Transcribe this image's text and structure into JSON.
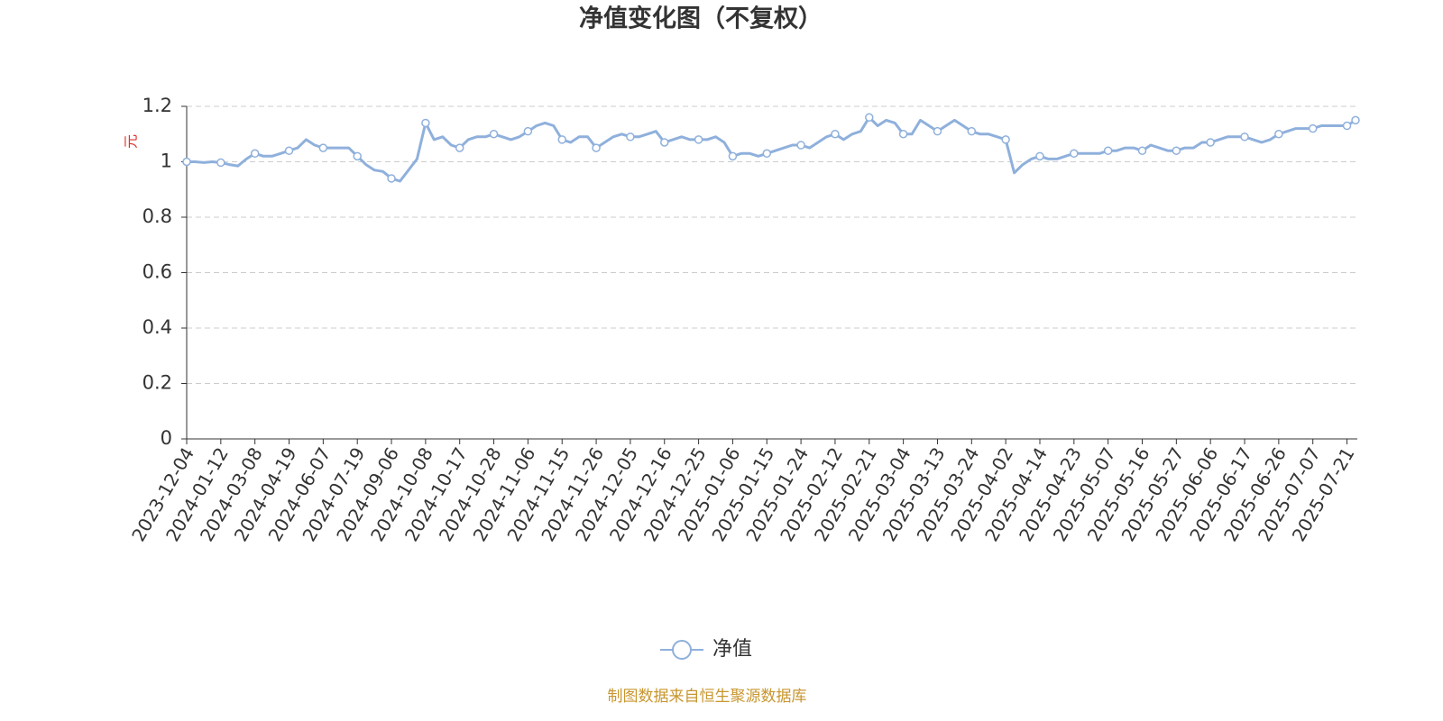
{
  "chart_data": {
    "type": "line",
    "title": "净值变化图（不复权）",
    "y_axis_label": "元",
    "source": "制图数据来自恒生聚源数据库",
    "legend": "bottom",
    "grid": true,
    "ylim": [
      0,
      1.2
    ],
    "yticks": [
      0,
      0.2,
      0.4,
      0.6,
      0.8,
      1,
      1.2
    ],
    "categories": [
      "2023-12-04",
      null,
      null,
      null,
      "2024-01-12",
      null,
      null,
      null,
      "2024-03-08",
      null,
      null,
      null,
      "2024-04-19",
      null,
      null,
      null,
      "2024-06-07",
      null,
      null,
      null,
      "2024-07-19",
      null,
      null,
      null,
      "2024-09-06",
      null,
      null,
      null,
      "2024-10-08",
      null,
      null,
      null,
      "2024-10-17",
      null,
      null,
      null,
      "2024-10-28",
      null,
      null,
      null,
      "2024-11-06",
      null,
      null,
      null,
      "2024-11-15",
      null,
      null,
      null,
      "2024-11-26",
      null,
      null,
      null,
      "2024-12-05",
      null,
      null,
      null,
      "2024-12-16",
      null,
      null,
      null,
      "2024-12-25",
      null,
      null,
      null,
      "2025-01-06",
      null,
      null,
      null,
      "2025-01-15",
      null,
      null,
      null,
      "2025-01-24",
      null,
      null,
      null,
      "2025-02-12",
      null,
      null,
      null,
      "2025-02-21",
      null,
      null,
      null,
      "2025-03-04",
      null,
      null,
      null,
      "2025-03-13",
      null,
      null,
      null,
      "2025-03-24",
      null,
      null,
      null,
      "2025-04-02",
      null,
      null,
      null,
      "2025-04-14",
      null,
      null,
      null,
      "2025-04-23",
      null,
      null,
      null,
      "2025-05-07",
      null,
      null,
      null,
      "2025-05-16",
      null,
      null,
      null,
      "2025-05-27",
      null,
      null,
      null,
      "2025-06-06",
      null,
      null,
      null,
      "2025-06-17",
      null,
      null,
      null,
      "2025-06-26",
      null,
      null,
      null,
      "2025-07-07",
      null,
      null,
      null,
      "2025-07-21",
      null
    ],
    "series": [
      {
        "name": "净值",
        "color": "#8fb0dc",
        "values": [
          1.0,
          1.0,
          0.997,
          1.0,
          0.997,
          0.99,
          0.985,
          1.01,
          1.03,
          1.02,
          1.02,
          1.03,
          1.04,
          1.05,
          1.08,
          1.06,
          1.05,
          1.05,
          1.05,
          1.05,
          1.02,
          0.99,
          0.97,
          0.965,
          0.94,
          0.93,
          0.97,
          1.01,
          1.14,
          1.08,
          1.09,
          1.06,
          1.05,
          1.08,
          1.09,
          1.09,
          1.1,
          1.09,
          1.08,
          1.09,
          1.11,
          1.13,
          1.14,
          1.13,
          1.08,
          1.07,
          1.09,
          1.09,
          1.05,
          1.07,
          1.09,
          1.1,
          1.09,
          1.09,
          1.1,
          1.11,
          1.07,
          1.08,
          1.09,
          1.08,
          1.08,
          1.08,
          1.09,
          1.07,
          1.02,
          1.03,
          1.03,
          1.02,
          1.03,
          1.04,
          1.05,
          1.06,
          1.06,
          1.05,
          1.07,
          1.09,
          1.1,
          1.08,
          1.1,
          1.11,
          1.16,
          1.13,
          1.15,
          1.14,
          1.1,
          1.1,
          1.15,
          1.13,
          1.11,
          1.13,
          1.15,
          1.13,
          1.11,
          1.1,
          1.1,
          1.09,
          1.08,
          0.96,
          0.99,
          1.01,
          1.02,
          1.01,
          1.01,
          1.02,
          1.03,
          1.03,
          1.03,
          1.03,
          1.04,
          1.04,
          1.05,
          1.05,
          1.04,
          1.06,
          1.05,
          1.04,
          1.04,
          1.05,
          1.05,
          1.07,
          1.07,
          1.08,
          1.09,
          1.09,
          1.09,
          1.08,
          1.07,
          1.08,
          1.1,
          1.11,
          1.12,
          1.12,
          1.12,
          1.13,
          1.13,
          1.13,
          1.13,
          1.15
        ]
      }
    ]
  }
}
